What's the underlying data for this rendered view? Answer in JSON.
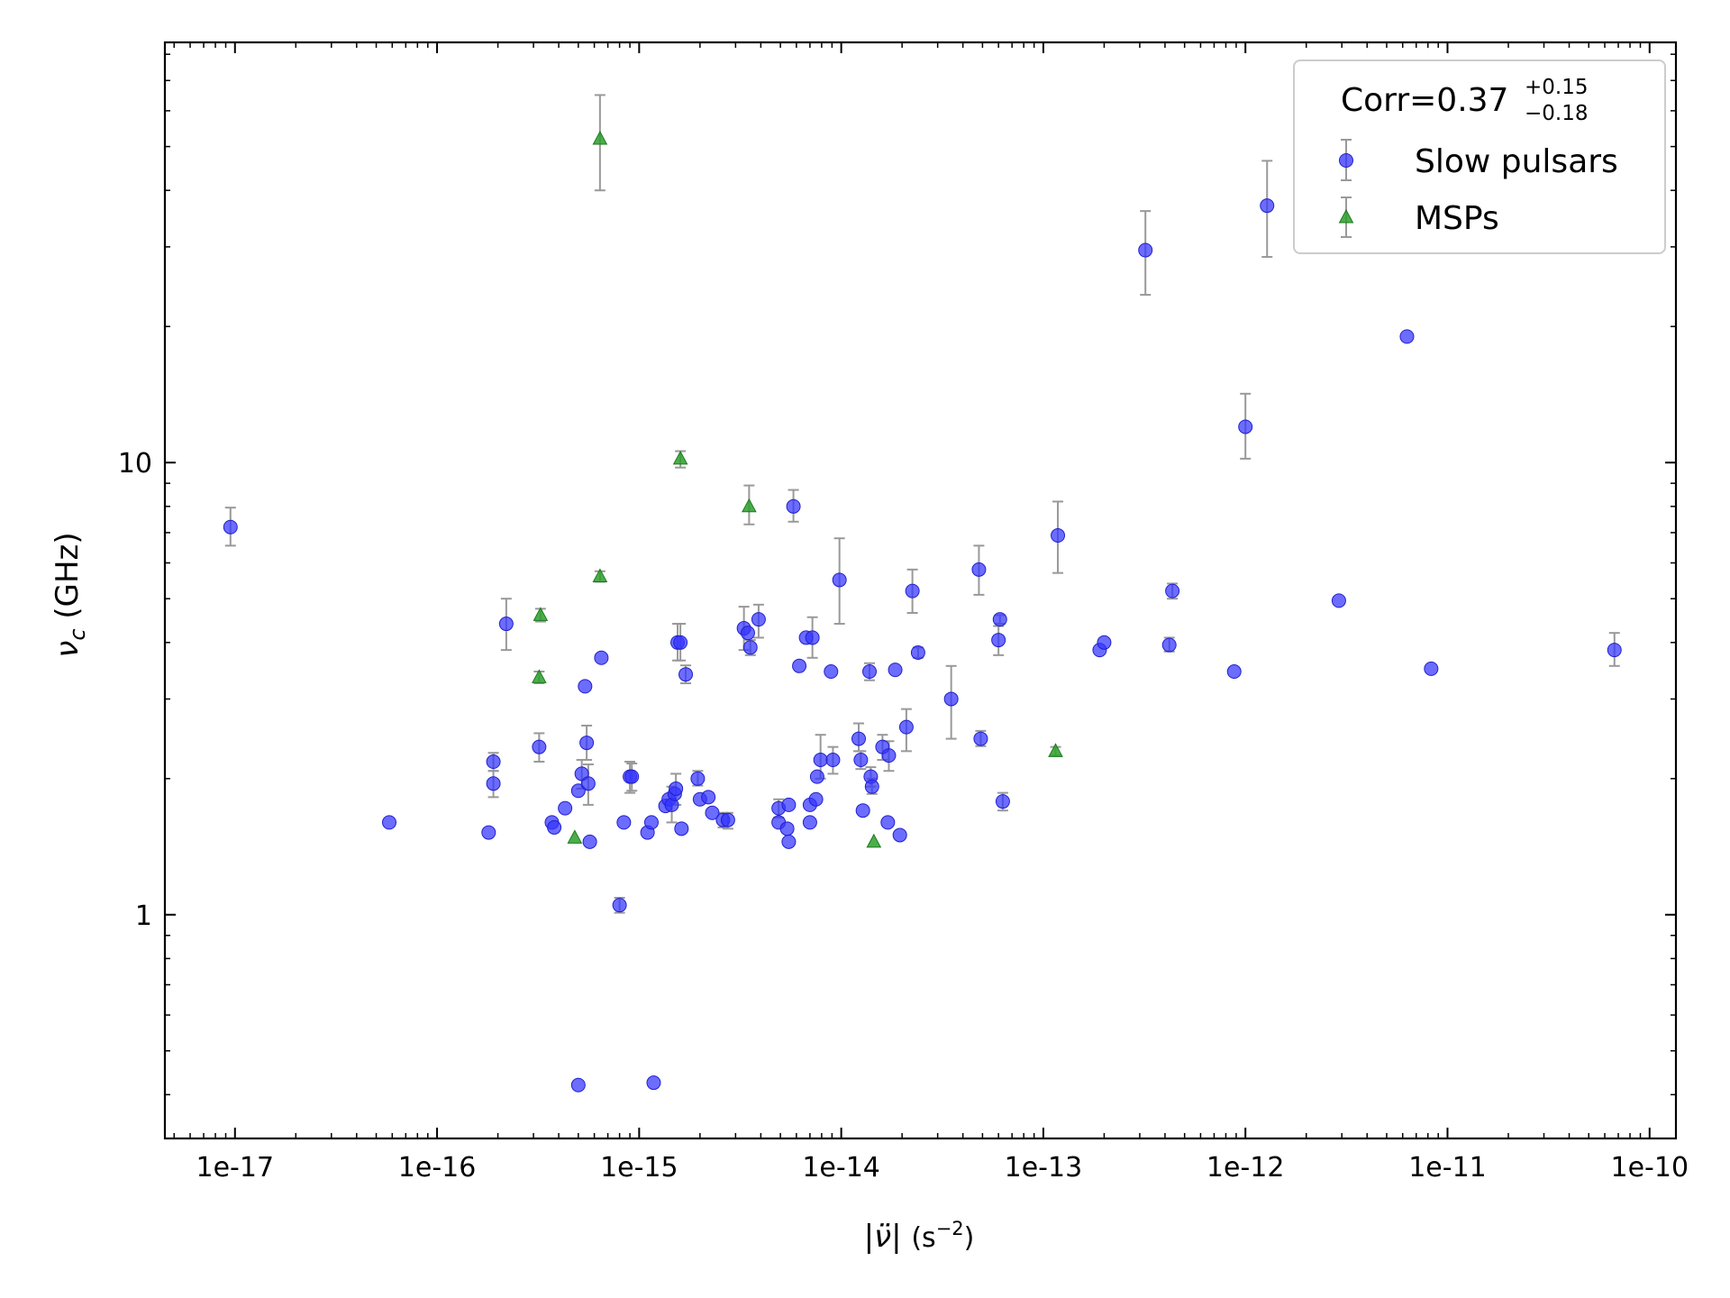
{
  "chart_data": {
    "type": "scatter",
    "x_scale": "log",
    "y_scale": "log",
    "xlim": [
      4.5e-18,
      1.35e-10
    ],
    "ylim": [
      0.32,
      85
    ],
    "xlabel_parts": {
      "pre": "|",
      "sym": "ν̈",
      "post": "| ",
      "unit": "(s",
      "exp": "−2",
      "close": ")"
    },
    "ylabel_parts": {
      "sym": "ν",
      "sub": "c",
      "unit": " (GHz)"
    },
    "x_ticks": [
      {
        "value": 1e-17,
        "label": "1e-17"
      },
      {
        "value": 1e-16,
        "label": "1e-16"
      },
      {
        "value": 1e-15,
        "label": "1e-15"
      },
      {
        "value": 1e-14,
        "label": "1e-14"
      },
      {
        "value": 1e-13,
        "label": "1e-13"
      },
      {
        "value": 1e-12,
        "label": "1e-12"
      },
      {
        "value": 1e-11,
        "label": "1e-11"
      },
      {
        "value": 1e-10,
        "label": "1e-10"
      }
    ],
    "y_ticks": [
      {
        "value": 1,
        "label": "1"
      },
      {
        "value": 10,
        "label": "10"
      }
    ],
    "grid": false,
    "legend_position": "top-right",
    "legend": {
      "title_main": "Corr=0.37",
      "title_sup": "+0.15",
      "title_sub": "−0.18"
    },
    "series": [
      {
        "name": "Slow pulsars",
        "marker": "circle",
        "color": "#3333ff",
        "points": [
          [
            9.5e-18,
            7.2,
            6.55,
            7.95
          ],
          [
            5.8e-17,
            1.6,
            null,
            null
          ],
          [
            1.8e-16,
            1.52,
            null,
            null
          ],
          [
            1.9e-16,
            2.18,
            2.08,
            2.28
          ],
          [
            1.9e-16,
            1.95,
            1.82,
            2.08
          ],
          [
            2.2e-16,
            4.4,
            3.85,
            5.0
          ],
          [
            3.2e-16,
            2.35,
            2.18,
            2.52
          ],
          [
            3.7e-16,
            1.6,
            null,
            null
          ],
          [
            3.8e-16,
            1.56,
            null,
            null
          ],
          [
            4.3e-16,
            1.72,
            null,
            null
          ],
          [
            5e-16,
            1.88,
            null,
            null
          ],
          [
            5.2e-16,
            2.05,
            1.9,
            2.2
          ],
          [
            5.4e-16,
            3.2,
            null,
            null
          ],
          [
            5.5e-16,
            2.4,
            2.2,
            2.62
          ],
          [
            5.6e-16,
            1.95,
            1.75,
            2.15
          ],
          [
            5.7e-16,
            1.45,
            null,
            null
          ],
          [
            6.5e-16,
            3.7,
            null,
            null
          ],
          [
            8e-16,
            1.05,
            1.01,
            1.09
          ],
          [
            8.4e-16,
            1.6,
            null,
            null
          ],
          [
            9e-16,
            2.02,
            1.86,
            2.18
          ],
          [
            9.2e-16,
            2.02,
            1.88,
            2.16
          ],
          [
            1.1e-15,
            1.52,
            null,
            null
          ],
          [
            1.15e-15,
            1.6,
            null,
            null
          ],
          [
            1.35e-15,
            1.74,
            null,
            null
          ],
          [
            1.4e-15,
            1.8,
            null,
            null
          ],
          [
            1.45e-15,
            1.75,
            1.6,
            1.92
          ],
          [
            1.5e-15,
            1.85,
            null,
            null
          ],
          [
            1.52e-15,
            1.9,
            1.75,
            2.05
          ],
          [
            1.55e-15,
            4.0,
            3.65,
            4.4
          ],
          [
            1.6e-15,
            4.0,
            3.65,
            4.4
          ],
          [
            1.62e-15,
            1.55,
            null,
            null
          ],
          [
            1.7e-15,
            3.4,
            3.25,
            3.56
          ],
          [
            1.95e-15,
            2.0,
            1.93,
            2.08
          ],
          [
            2e-15,
            1.8,
            null,
            null
          ],
          [
            2.2e-15,
            1.82,
            null,
            null
          ],
          [
            2.3e-15,
            1.68,
            null,
            null
          ],
          [
            2.6e-15,
            1.62,
            1.56,
            1.68
          ],
          [
            2.75e-15,
            1.62,
            1.55,
            1.68
          ],
          [
            3.3e-15,
            4.3,
            3.85,
            4.8
          ],
          [
            3.45e-15,
            4.2,
            null,
            null
          ],
          [
            3.55e-15,
            3.9,
            3.75,
            4.05
          ],
          [
            3.9e-15,
            4.5,
            4.1,
            4.85
          ],
          [
            4.9e-15,
            1.6,
            null,
            null
          ],
          [
            4.9e-15,
            1.72,
            1.64,
            1.8
          ],
          [
            5.4e-15,
            1.55,
            null,
            null
          ],
          [
            5.5e-15,
            1.45,
            null,
            null
          ],
          [
            5.5e-15,
            1.75,
            null,
            null
          ],
          [
            5.8e-15,
            8.0,
            7.4,
            8.7
          ],
          [
            6.2e-15,
            3.55,
            null,
            null
          ],
          [
            6.7e-15,
            4.1,
            null,
            null
          ],
          [
            7e-15,
            1.6,
            null,
            null
          ],
          [
            7e-15,
            1.75,
            null,
            null
          ],
          [
            7.2e-15,
            4.1,
            3.7,
            4.55
          ],
          [
            7.5e-15,
            1.8,
            null,
            null
          ],
          [
            7.6e-15,
            2.02,
            null,
            null
          ],
          [
            7.9e-15,
            2.2,
            2.0,
            2.5
          ],
          [
            8.9e-15,
            3.45,
            null,
            null
          ],
          [
            9.1e-15,
            2.2,
            2.05,
            2.35
          ],
          [
            9.8e-15,
            5.5,
            4.4,
            6.8
          ],
          [
            1.22e-14,
            2.45,
            2.3,
            2.65
          ],
          [
            1.25e-14,
            2.2,
            2.1,
            2.3
          ],
          [
            1.28e-14,
            1.7,
            null,
            null
          ],
          [
            1.38e-14,
            3.45,
            3.3,
            3.6
          ],
          [
            1.4e-14,
            2.02,
            1.92,
            2.12
          ],
          [
            1.42e-14,
            1.92,
            1.85,
            2.0
          ],
          [
            1.6e-14,
            2.35,
            2.2,
            2.5
          ],
          [
            1.7e-14,
            1.6,
            null,
            null
          ],
          [
            1.72e-14,
            2.25,
            2.08,
            2.42
          ],
          [
            1.85e-14,
            3.48,
            null,
            null
          ],
          [
            1.95e-14,
            1.5,
            null,
            null
          ],
          [
            2.1e-14,
            2.6,
            2.3,
            2.85
          ],
          [
            2.25e-14,
            5.2,
            4.65,
            5.8
          ],
          [
            2.4e-14,
            3.8,
            3.7,
            3.9
          ],
          [
            3.5e-14,
            3.0,
            2.45,
            3.55
          ],
          [
            4.8e-14,
            5.8,
            5.1,
            6.55
          ],
          [
            4.9e-14,
            2.45,
            2.36,
            2.55
          ],
          [
            6e-14,
            4.05,
            3.75,
            4.35
          ],
          [
            6.1e-14,
            4.5,
            4.4,
            4.6
          ],
          [
            6.3e-14,
            1.78,
            1.7,
            1.86
          ],
          [
            1.18e-13,
            6.9,
            5.7,
            8.2
          ],
          [
            1.9e-13,
            3.85,
            null,
            null
          ],
          [
            2e-13,
            4.0,
            null,
            null
          ],
          [
            3.2e-13,
            29.5,
            23.5,
            36.0
          ],
          [
            4.2e-13,
            3.95,
            3.82,
            4.1
          ],
          [
            4.35e-13,
            5.2,
            5.0,
            5.4
          ],
          [
            8.8e-13,
            3.45,
            null,
            null
          ],
          [
            1e-12,
            12.0,
            10.2,
            14.2
          ],
          [
            1.28e-12,
            37.0,
            28.5,
            46.5
          ],
          [
            2.9e-12,
            4.95,
            null,
            null
          ],
          [
            6.3e-12,
            19.0,
            null,
            null
          ],
          [
            8.3e-12,
            3.5,
            null,
            null
          ],
          [
            6.7e-11,
            3.85,
            3.55,
            4.2
          ],
          [
            5e-16,
            0.42,
            null,
            null
          ],
          [
            1.18e-15,
            0.425,
            null,
            null
          ]
        ]
      },
      {
        "name": "MSPs",
        "marker": "triangle",
        "color": "#2ca02c",
        "points": [
          [
            3.2e-16,
            3.35,
            3.25,
            3.45
          ],
          [
            3.25e-16,
            4.6,
            4.45,
            4.75
          ],
          [
            4.8e-16,
            1.48,
            null,
            null
          ],
          [
            6.4e-16,
            5.6,
            5.45,
            5.75
          ],
          [
            6.4e-16,
            52.0,
            40.0,
            65.0
          ],
          [
            1.6e-15,
            10.2,
            9.75,
            10.6
          ],
          [
            3.5e-15,
            8.0,
            7.3,
            8.9
          ],
          [
            1.45e-14,
            1.45,
            null,
            null
          ],
          [
            1.15e-13,
            2.3,
            2.25,
            2.35
          ]
        ]
      }
    ]
  }
}
